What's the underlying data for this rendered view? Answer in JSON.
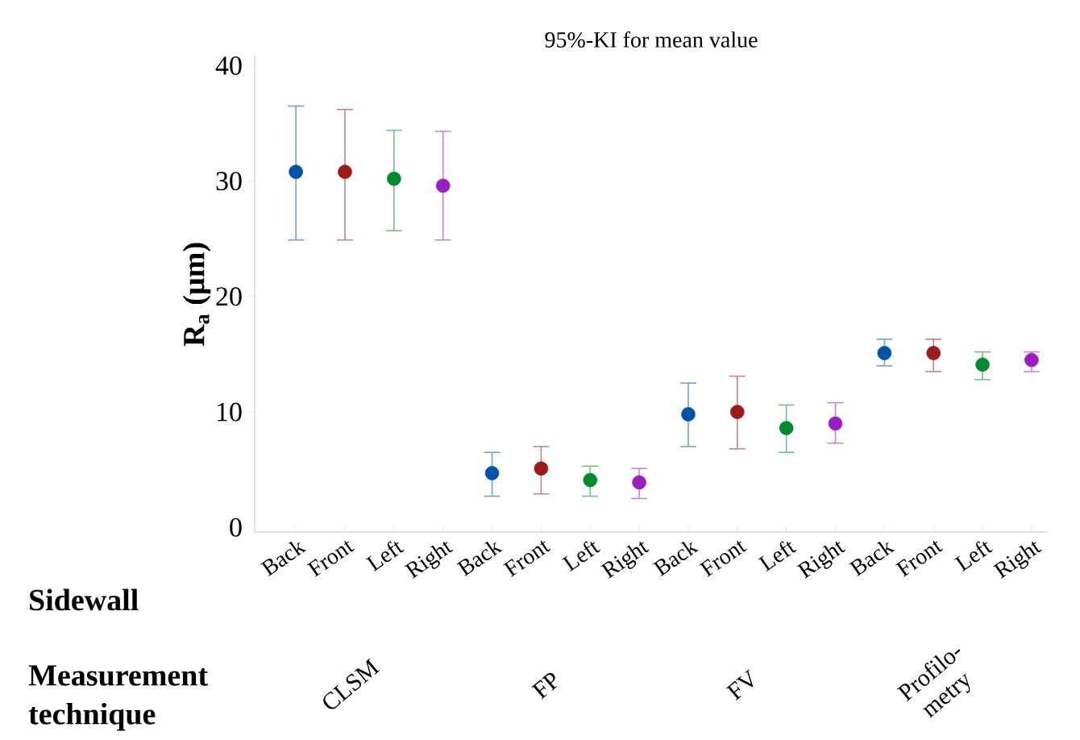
{
  "chart_data": {
    "type": "scatter",
    "title": "95%-KI for mean value",
    "ylabel": "**R$_{a}$ (µm)**",
    "categories": [
      "Back",
      "Front",
      "Left",
      "Right",
      "Back",
      "Front",
      "Left",
      "Right",
      "Back",
      "Front",
      "Left",
      "Right",
      "Back",
      "Front",
      "Left",
      "Right"
    ],
    "values": [
      30.8,
      30.8,
      30.2,
      29.6,
      4.7,
      5.1,
      4.1,
      3.9,
      9.8,
      10.0,
      8.6,
      9.0,
      15.1,
      15.1,
      14.1,
      14.5
    ],
    "errors": [
      [
        24.9,
        36.5
      ],
      [
        24.9,
        36.2
      ],
      [
        25.7,
        34.4
      ],
      [
        24.9,
        34.3
      ],
      [
        2.7,
        6.5
      ],
      [
        2.9,
        7.0
      ],
      [
        2.7,
        5.3
      ],
      [
        2.5,
        5.1
      ],
      [
        7.0,
        12.5
      ],
      [
        6.8,
        13.1
      ],
      [
        6.5,
        10.6
      ],
      [
        7.3,
        10.8
      ],
      [
        14.0,
        16.3
      ],
      [
        13.5,
        16.3
      ],
      [
        12.8,
        15.2
      ],
      [
        13.5,
        15.2
      ]
    ],
    "colors": [
      "#0054a6",
      "#9b1b1b",
      "#008a2e",
      "#9b1fbf",
      "#0054a6",
      "#9b1b1b",
      "#008a2e",
      "#9b1fbf",
      "#0054a6",
      "#9b1b1b",
      "#008a2e",
      "#9b1fbf",
      "#0054a6",
      "#9b1b1b",
      "#008a2e",
      "#9b1fbf"
    ],
    "ylim": [
      -0.4,
      40.8
    ],
    "yticks": [
      0,
      10,
      20,
      30,
      40
    ],
    "annotations": [
      "**Sidewall**",
      "**Measurement technique**",
      "CLSM",
      "FP",
      "FV",
      "Profilo-metry"
    ]
  }
}
